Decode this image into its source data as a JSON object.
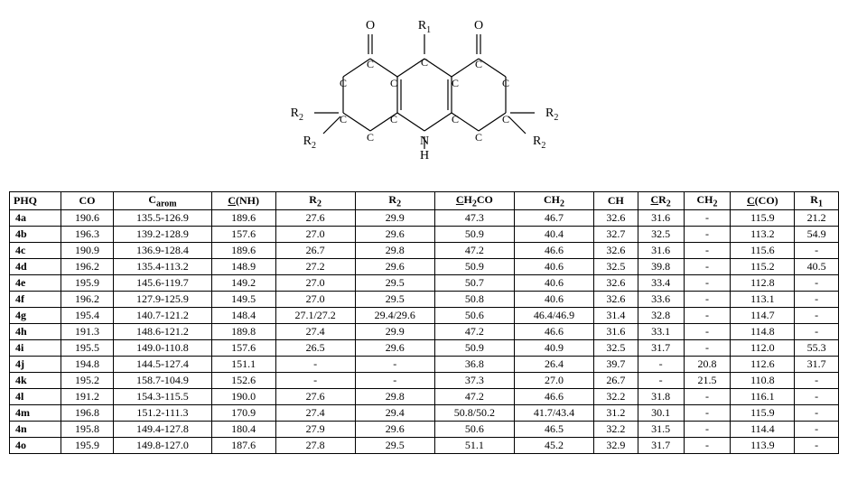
{
  "diagram": {
    "labels": {
      "O_left": "O",
      "O_right": "O",
      "R1": "R",
      "R1_sub": "1",
      "R2": "R",
      "R2_sub": "2",
      "C": "C",
      "N": "N",
      "H": "H"
    },
    "colors": {
      "stroke": "#000000",
      "text": "#000000",
      "background": "#ffffff"
    },
    "fontsize": 14
  },
  "table": {
    "columns": [
      {
        "label_html": "PHQ"
      },
      {
        "label_html": "CO"
      },
      {
        "label_html": "C<sub>arom</sub>"
      },
      {
        "label_html": "<span class='underline-part'>C</span>(NH)"
      },
      {
        "label_html": "R<sub>2</sub>"
      },
      {
        "label_html": "R<sub>2</sub>"
      },
      {
        "label_html": "<span class='underline-part'>C</span>H<sub>2</sub>CO"
      },
      {
        "label_html": "CH<sub>2</sub>"
      },
      {
        "label_html": "CH"
      },
      {
        "label_html": "<span class='underline-part'>C</span>R<sub>2</sub>"
      },
      {
        "label_html": "CH<sub>2</sub>"
      },
      {
        "label_html": "<span class='underline-part'>C</span>(CO)"
      },
      {
        "label_html": "R<sub>1</sub>"
      }
    ],
    "rows": [
      [
        "4a",
        "190.6",
        "135.5-126.9",
        "189.6",
        "27.6",
        "29.9",
        "47.3",
        "46.7",
        "32.6",
        "31.6",
        "-",
        "115.9",
        "21.2"
      ],
      [
        "4b",
        "196.3",
        "139.2-128.9",
        "157.6",
        "27.0",
        "29.6",
        "50.9",
        "40.4",
        "32.7",
        "32.5",
        "-",
        "113.2",
        "54.9"
      ],
      [
        "4c",
        "190.9",
        "136.9-128.4",
        "189.6",
        "26.7",
        "29.8",
        "47.2",
        "46.6",
        "32.6",
        "31.6",
        "-",
        "115.6",
        "-"
      ],
      [
        "4d",
        "196.2",
        "135.4-113.2",
        "148.9",
        "27.2",
        "29.6",
        "50.9",
        "40.6",
        "32.5",
        "39.8",
        "-",
        "115.2",
        "40.5"
      ],
      [
        "4e",
        "195.9",
        "145.6-119.7",
        "149.2",
        "27.0",
        "29.5",
        "50.7",
        "40.6",
        "32.6",
        "33.4",
        "-",
        "112.8",
        "-"
      ],
      [
        "4f",
        "196.2",
        "127.9-125.9",
        "149.5",
        "27.0",
        "29.5",
        "50.8",
        "40.6",
        "32.6",
        "33.6",
        "-",
        "113.1",
        "-"
      ],
      [
        "4g",
        "195.4",
        "140.7-121.2",
        "148.4",
        "27.1/27.2",
        "29.4/29.6",
        "50.6",
        "46.4/46.9",
        "31.4",
        "32.8",
        "-",
        "114.7",
        "-"
      ],
      [
        "4h",
        "191.3",
        "148.6-121.2",
        "189.8",
        "27.4",
        "29.9",
        "47.2",
        "46.6",
        "31.6",
        "33.1",
        "-",
        "114.8",
        "-"
      ],
      [
        "4i",
        "195.5",
        "149.0-110.8",
        "157.6",
        "26.5",
        "29.6",
        "50.9",
        "40.9",
        "32.5",
        "31.7",
        "-",
        "112.0",
        "55.3"
      ],
      [
        "4j",
        "194.8",
        "144.5-127.4",
        "151.1",
        "-",
        "-",
        "36.8",
        "26.4",
        "39.7",
        "-",
        "20.8",
        "112.6",
        "31.7"
      ],
      [
        "4k",
        "195.2",
        "158.7-104.9",
        "152.6",
        "-",
        "-",
        "37.3",
        "27.0",
        "26.7",
        "-",
        "21.5",
        "110.8",
        "-"
      ],
      [
        "4l",
        "191.2",
        "154.3-115.5",
        "190.0",
        "27.6",
        "29.8",
        "47.2",
        "46.6",
        "32.2",
        "31.8",
        "-",
        "116.1",
        "-"
      ],
      [
        "4m",
        "196.8",
        "151.2-111.3",
        "170.9",
        "27.4",
        "29.4",
        "50.8/50.2",
        "41.7/43.4",
        "31.2",
        "30.1",
        "-",
        "115.9",
        "-"
      ],
      [
        "4n",
        "195.8",
        "149.4-127.8",
        "180.4",
        "27.9",
        "29.6",
        "50.6",
        "46.5",
        "32.2",
        "31.5",
        "-",
        "114.4",
        "-"
      ],
      [
        "4o",
        "195.9",
        "149.8-127.0",
        "187.6",
        "27.8",
        "29.5",
        "51.1",
        "45.2",
        "32.9",
        "31.7",
        "-",
        "113.9",
        "-"
      ]
    ]
  }
}
